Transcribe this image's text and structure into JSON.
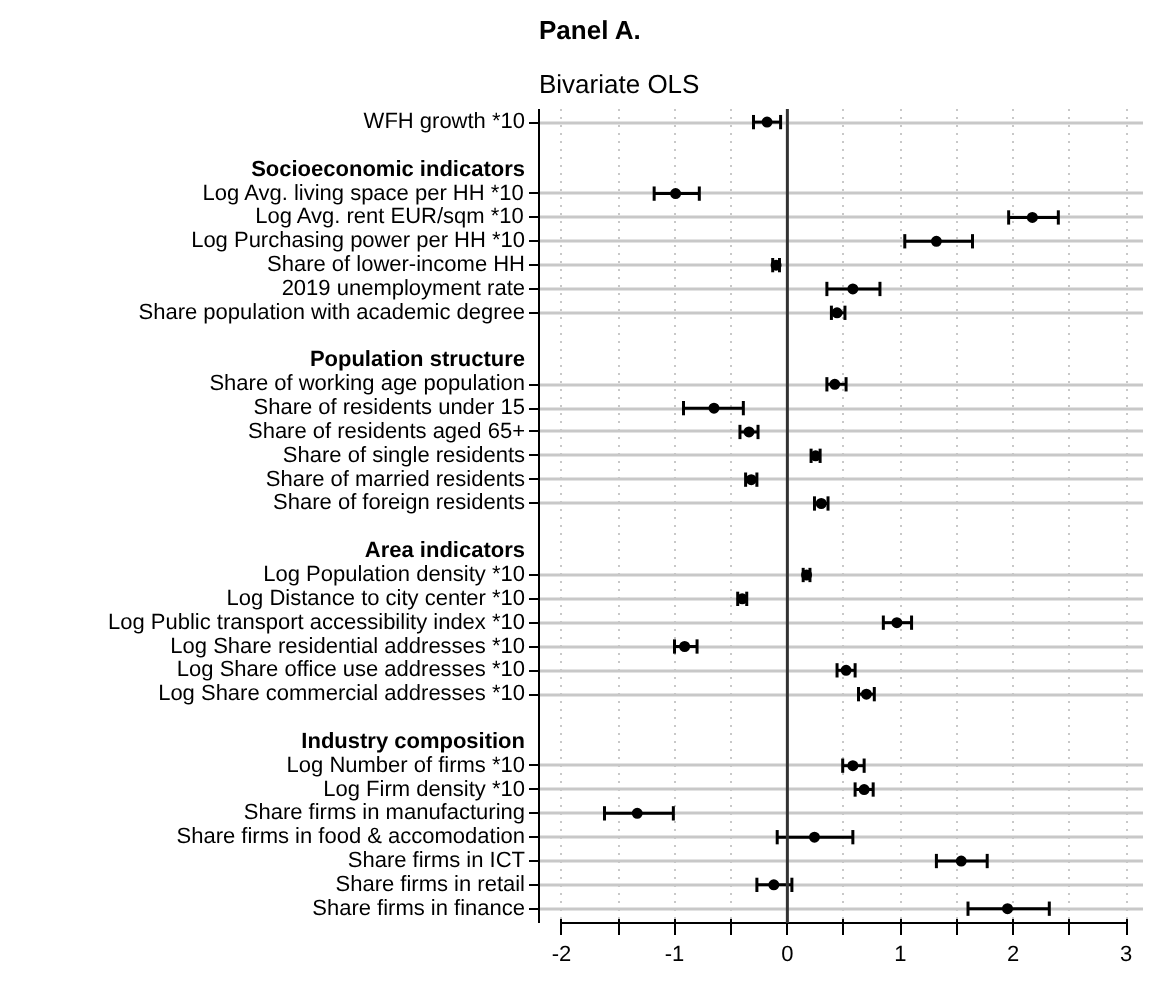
{
  "chart_data": {
    "type": "scatter",
    "orientation": "horizontal",
    "title": "Panel A.",
    "subtitle": "Bivariate OLS",
    "categories": [
      "WFH growth *10",
      null,
      "Socioeconomic indicators",
      "Log Avg. living space per HH *10",
      "Log Avg. rent EUR/sqm *10",
      "Log Purchasing power per HH *10",
      "Share of lower-income HH",
      "2019 unemployment rate",
      "Share population with academic degree",
      null,
      "Population structure",
      "Share of working age population",
      "Share of residents under 15",
      "Share of residents aged 65+",
      "Share of single residents",
      "Share of married residents",
      "Share of foreign residents",
      null,
      "Area indicators",
      "Log Population density *10",
      "Log Distance to city center *10",
      "Log Public transport accessibility index *10",
      "Log Share residential addresses *10",
      "Log Share office use addresses *10",
      "Log Share commercial addresses *10",
      null,
      "Industry composition",
      "Log Number of firms *10",
      "Log Firm density *10",
      "Share firms in manufacturing",
      "Share firms in food & accomodation",
      "Share firms in ICT",
      "Share firms in retail",
      "Share firms in finance"
    ],
    "series": [
      {
        "color": "#000000",
        "values": [
          -0.18,
          null,
          null,
          -0.99,
          2.17,
          1.32,
          -0.1,
          0.58,
          0.44,
          null,
          null,
          0.42,
          -0.65,
          -0.34,
          0.25,
          -0.32,
          0.3,
          null,
          null,
          0.17,
          -0.4,
          0.97,
          -0.91,
          0.52,
          0.7,
          null,
          null,
          0.58,
          0.68,
          -1.33,
          0.24,
          1.54,
          -0.12,
          1.95
        ],
        "errors": [
          [
            -0.3,
            -0.06
          ],
          null,
          null,
          [
            -1.18,
            -0.78
          ],
          [
            1.96,
            2.4
          ],
          [
            1.04,
            1.64
          ],
          [
            -0.13,
            -0.07
          ],
          [
            0.35,
            0.82
          ],
          [
            0.39,
            0.51
          ],
          null,
          null,
          [
            0.35,
            0.52
          ],
          [
            -0.92,
            -0.39
          ],
          [
            -0.42,
            -0.26
          ],
          [
            0.21,
            0.29
          ],
          [
            -0.37,
            -0.27
          ],
          [
            0.24,
            0.36
          ],
          null,
          null,
          [
            0.14,
            0.2
          ],
          [
            -0.44,
            -0.36
          ],
          [
            0.85,
            1.1
          ],
          [
            -1.0,
            -0.8
          ],
          [
            0.44,
            0.6
          ],
          [
            0.63,
            0.77
          ],
          null,
          null,
          [
            0.49,
            0.68
          ],
          [
            0.6,
            0.76
          ],
          [
            -1.62,
            -1.01
          ],
          [
            -0.09,
            0.58
          ],
          [
            1.32,
            1.77
          ],
          [
            -0.27,
            0.04
          ],
          [
            1.6,
            2.32
          ]
        ]
      }
    ],
    "xlim": [
      -2.2,
      3.15
    ],
    "xticks": [
      -2,
      {
        "value": -1.5,
        "label": null
      },
      -1,
      {
        "value": -0.5,
        "label": null
      },
      0,
      {
        "value": 0.5,
        "label": null
      },
      1,
      {
        "value": 1.5,
        "label": null
      },
      2,
      {
        "value": 2.5,
        "label": null
      },
      3
    ],
    "grid": true,
    "marker": "circle",
    "ref_lines": [
      {
        "axis": "x",
        "value": 0,
        "color": "#333333"
      }
    ]
  }
}
